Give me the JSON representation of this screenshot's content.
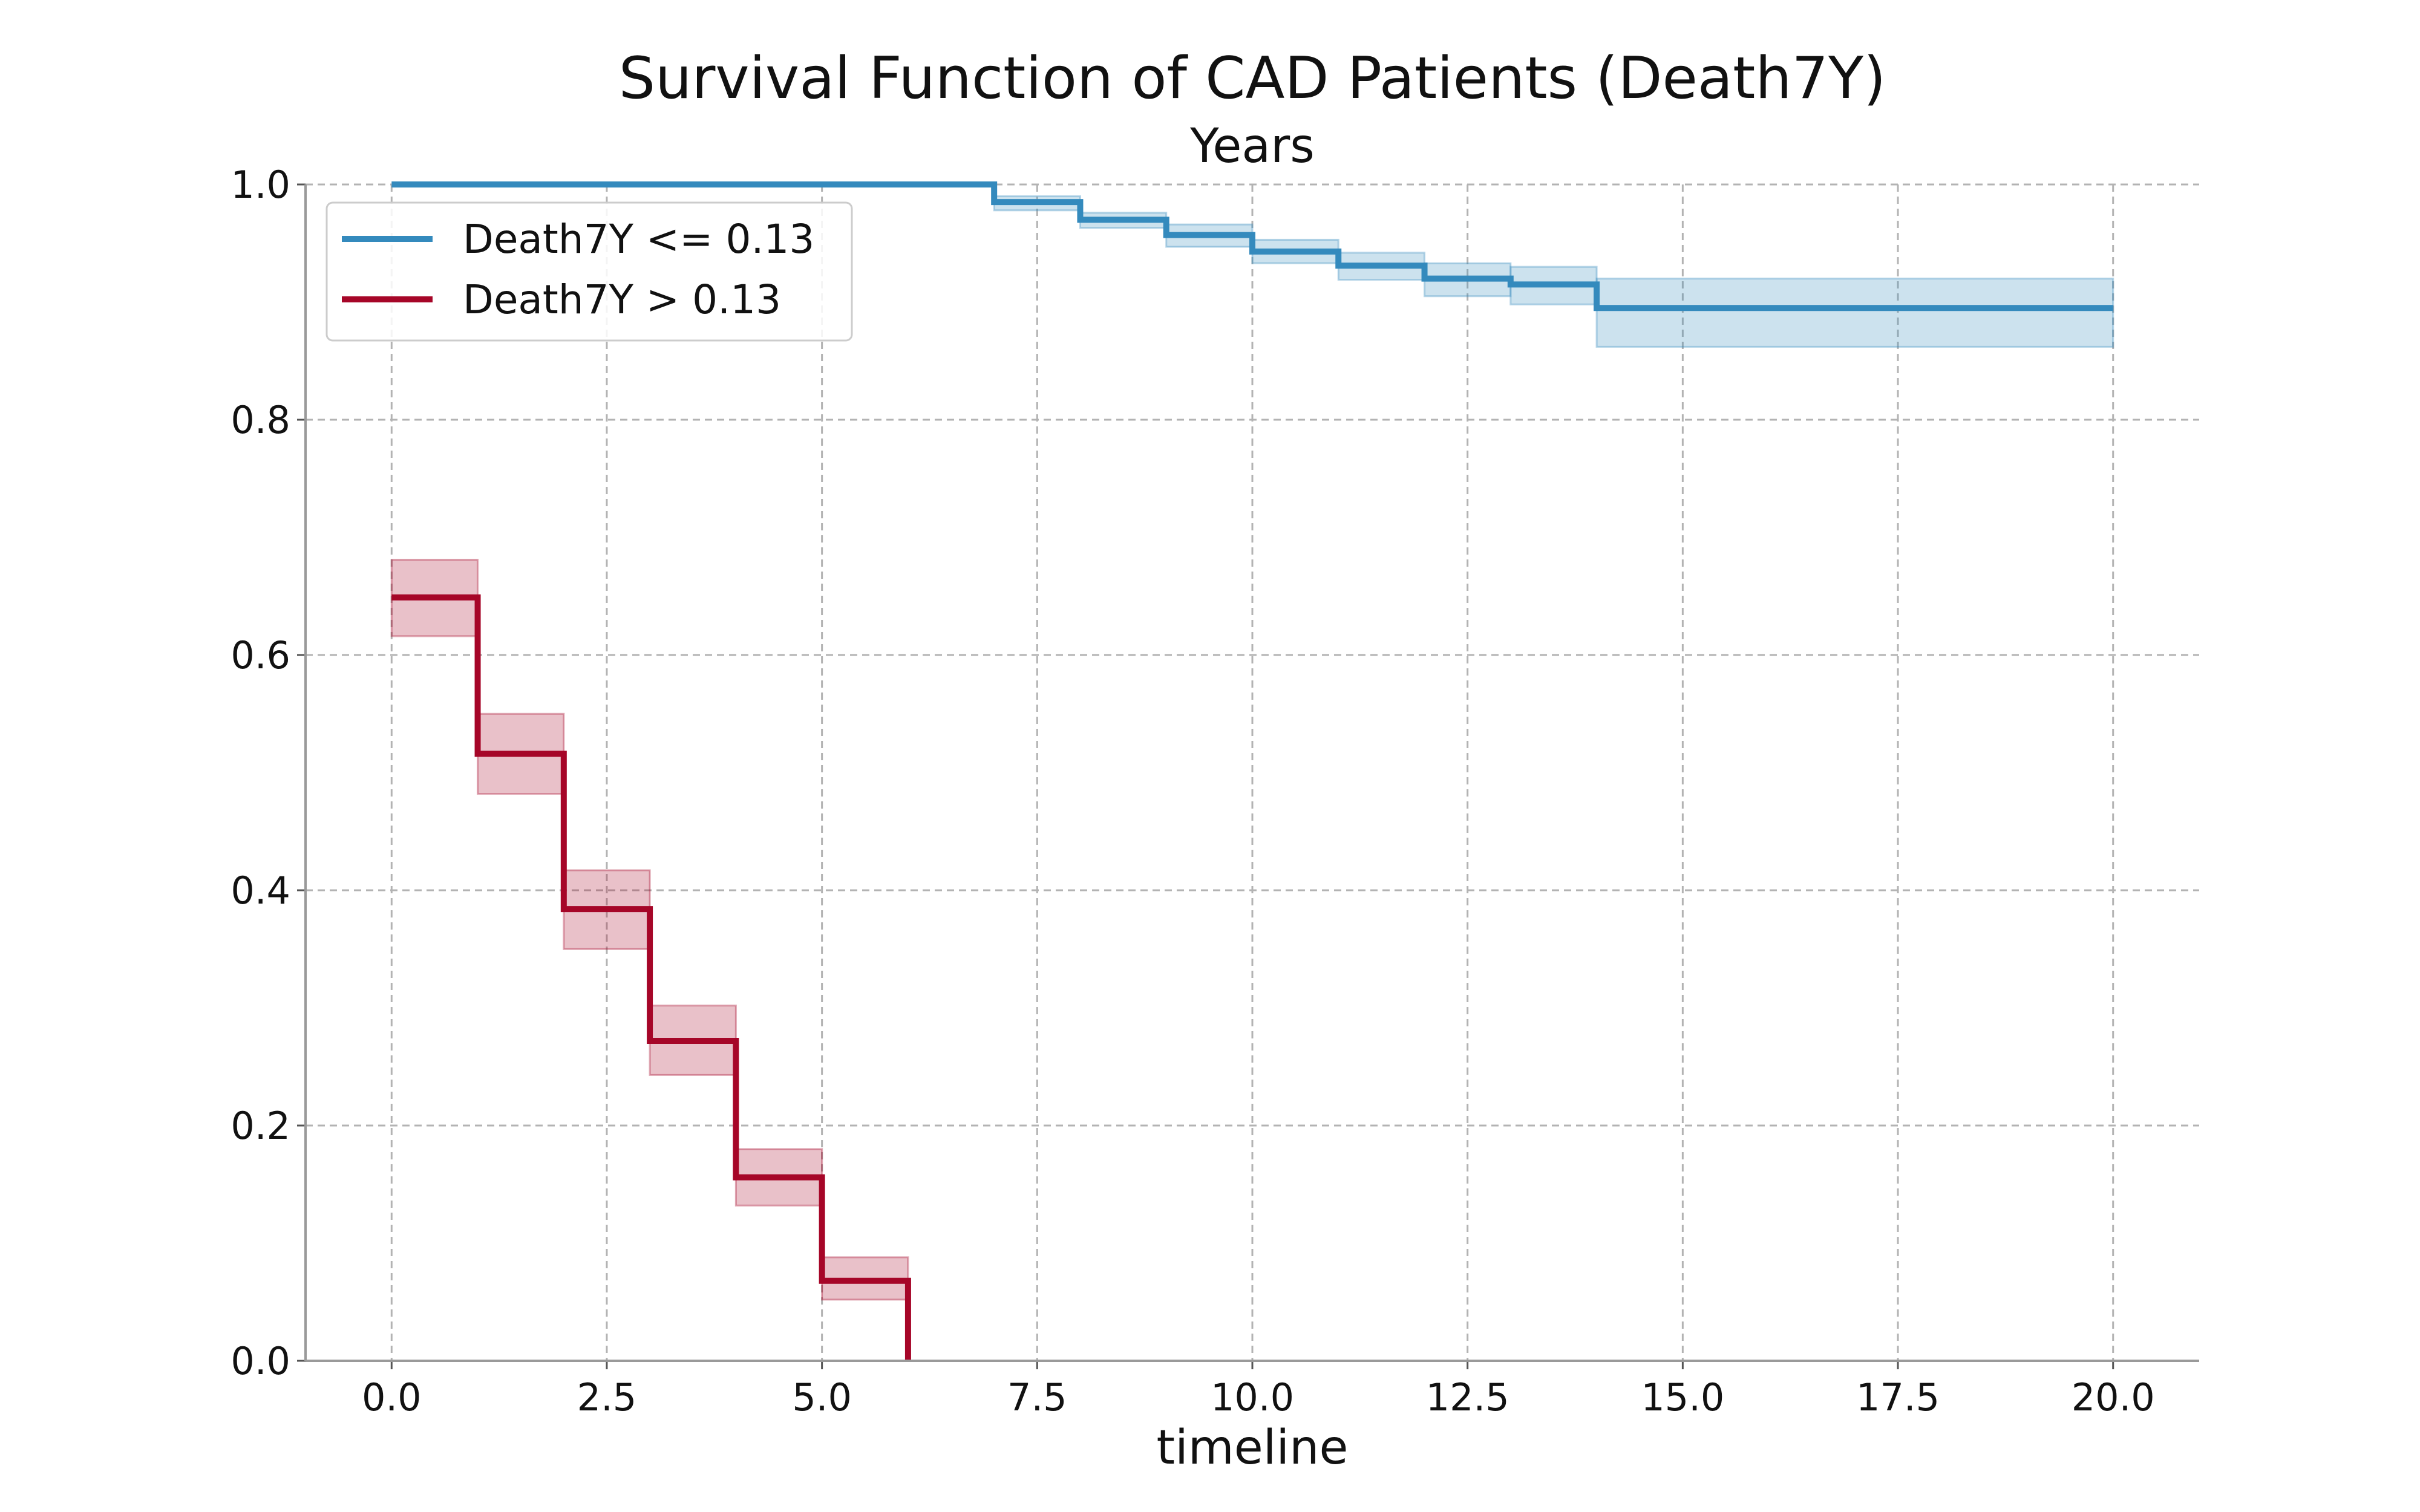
{
  "chart_data": {
    "type": "line",
    "title": "Survival Function of CAD Patients (Death7Y)",
    "subtitle": "Years",
    "xlabel": "timeline",
    "ylabel": "",
    "xlim": [
      -1.0,
      21.0
    ],
    "ylim": [
      0.0,
      1.0
    ],
    "x_ticks": [
      0.0,
      2.5,
      5.0,
      7.5,
      10.0,
      12.5,
      15.0,
      17.5,
      20.0
    ],
    "x_tick_labels": [
      "0.0",
      "2.5",
      "5.0",
      "7.5",
      "10.0",
      "12.5",
      "15.0",
      "17.5",
      "20.0"
    ],
    "y_ticks": [
      0.0,
      0.2,
      0.4,
      0.6,
      0.8,
      1.0
    ],
    "y_tick_labels": [
      "0.0",
      "0.2",
      "0.4",
      "0.6",
      "0.8",
      "1.0"
    ],
    "grid": true,
    "legend_position": "top-left",
    "series": [
      {
        "name": "Death7Y <= 0.13",
        "color": "#348abd",
        "x": [
          0,
          7,
          8,
          9,
          10,
          11,
          12,
          13,
          14,
          20
        ],
        "y": [
          1.0,
          0.985,
          0.97,
          0.957,
          0.943,
          0.931,
          0.92,
          0.915,
          0.895,
          0.895
        ],
        "ci_lower": [
          1.0,
          0.978,
          0.963,
          0.947,
          0.933,
          0.919,
          0.905,
          0.898,
          0.862,
          0.862
        ],
        "ci_upper": [
          1.0,
          0.99,
          0.976,
          0.966,
          0.953,
          0.942,
          0.933,
          0.93,
          0.92,
          0.92
        ]
      },
      {
        "name": "Death7Y > 0.13",
        "color": "#a60628",
        "x": [
          0,
          1,
          2,
          3,
          4,
          5,
          6
        ],
        "y": [
          0.649,
          0.516,
          0.384,
          0.272,
          0.156,
          0.068,
          0.0
        ],
        "ci_lower": [
          0.616,
          0.482,
          0.35,
          0.243,
          0.132,
          0.052,
          0.0
        ],
        "ci_upper": [
          0.681,
          0.55,
          0.417,
          0.302,
          0.18,
          0.088,
          0.0
        ]
      }
    ]
  }
}
